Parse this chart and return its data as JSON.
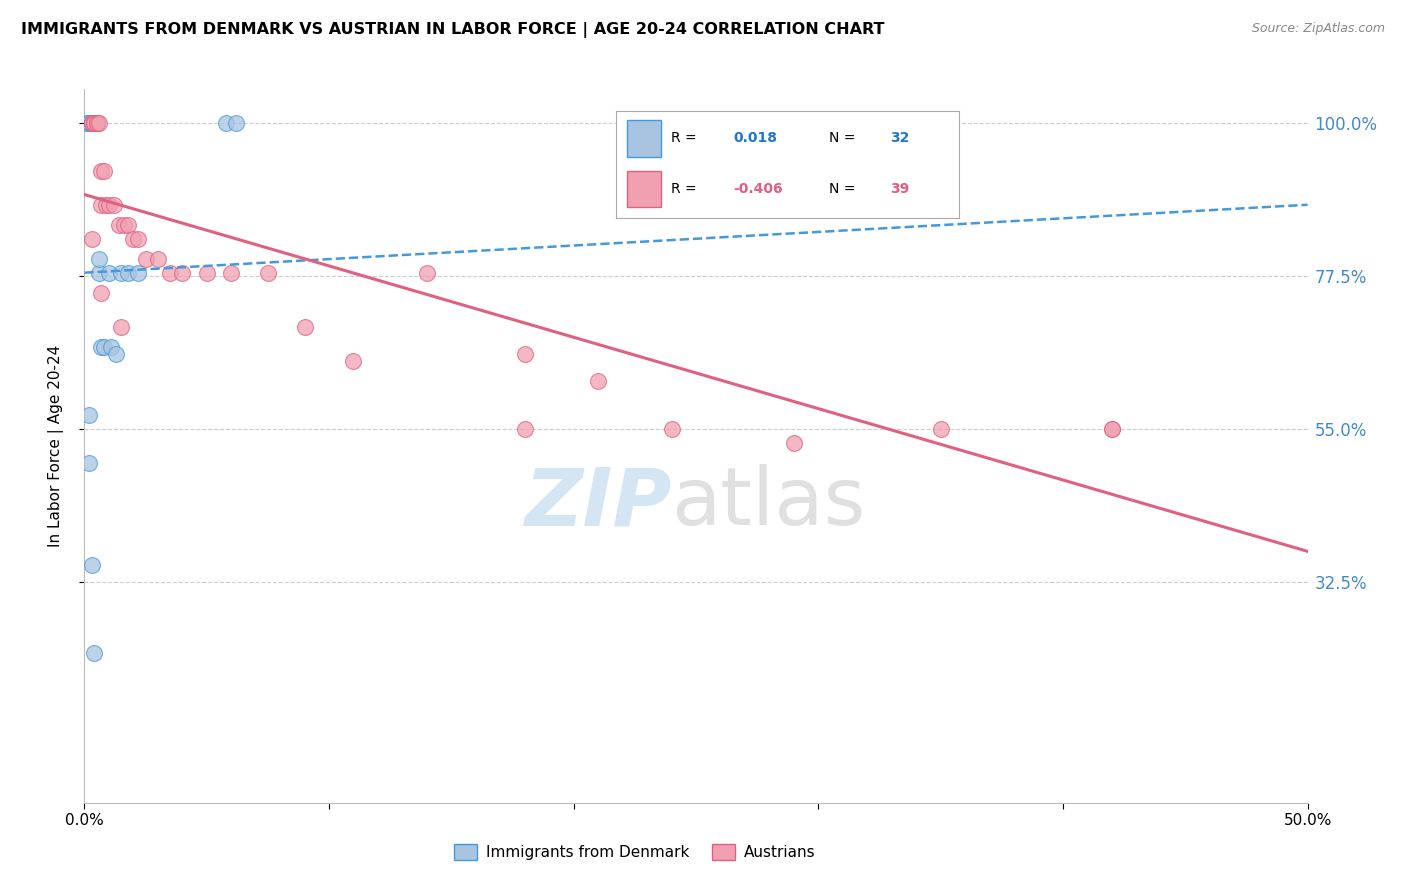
{
  "title": "IMMIGRANTS FROM DENMARK VS AUSTRIAN IN LABOR FORCE | AGE 20-24 CORRELATION CHART",
  "source": "Source: ZipAtlas.com",
  "ylabel": "In Labor Force | Age 20-24",
  "xlim": [
    0.0,
    0.5
  ],
  "ylim": [
    0.0,
    1.05
  ],
  "yticks": [
    0.325,
    0.55,
    0.775,
    1.0
  ],
  "ytick_labels": [
    "32.5%",
    "55.0%",
    "77.5%",
    "100.0%"
  ],
  "xticks": [
    0.0,
    0.1,
    0.2,
    0.3,
    0.4,
    0.5
  ],
  "xtick_labels": [
    "0.0%",
    "",
    "",
    "",
    "",
    "50.0%"
  ],
  "denmark_color": "#a8c4e0",
  "austrians_color": "#f0a0b0",
  "trend_denmark_color": "#4499dd",
  "trend_austrians_color": "#e06080",
  "denmark_trend_x": [
    0.0,
    0.5
  ],
  "denmark_trend_y": [
    0.78,
    0.88
  ],
  "austrians_trend_x": [
    0.0,
    0.5
  ],
  "austrians_trend_y": [
    0.895,
    0.37
  ],
  "denmark_points_x": [
    0.001,
    0.002,
    0.002,
    0.003,
    0.003,
    0.003,
    0.003,
    0.004,
    0.004,
    0.004,
    0.004,
    0.004,
    0.004,
    0.005,
    0.005,
    0.005,
    0.006,
    0.006,
    0.007,
    0.008,
    0.01,
    0.011,
    0.013,
    0.015,
    0.018,
    0.022,
    0.058,
    0.062,
    0.002,
    0.002,
    0.003,
    0.004
  ],
  "denmark_points_y": [
    1.0,
    1.0,
    1.0,
    1.0,
    1.0,
    1.0,
    1.0,
    1.0,
    1.0,
    1.0,
    1.0,
    1.0,
    1.0,
    1.0,
    1.0,
    1.0,
    0.78,
    0.8,
    0.67,
    0.67,
    0.78,
    0.67,
    0.66,
    0.78,
    0.78,
    0.78,
    1.0,
    1.0,
    0.57,
    0.5,
    0.35,
    0.22
  ],
  "austrians_points_x": [
    0.003,
    0.003,
    0.004,
    0.004,
    0.005,
    0.005,
    0.006,
    0.007,
    0.007,
    0.008,
    0.009,
    0.01,
    0.012,
    0.014,
    0.016,
    0.018,
    0.02,
    0.022,
    0.025,
    0.03,
    0.035,
    0.04,
    0.05,
    0.06,
    0.075,
    0.09,
    0.11,
    0.14,
    0.18,
    0.21,
    0.24,
    0.29,
    0.35,
    0.42,
    0.003,
    0.007,
    0.015,
    0.18,
    0.42
  ],
  "austrians_points_y": [
    1.0,
    1.0,
    1.0,
    1.0,
    1.0,
    1.0,
    1.0,
    0.93,
    0.88,
    0.93,
    0.88,
    0.88,
    0.88,
    0.85,
    0.85,
    0.85,
    0.83,
    0.83,
    0.8,
    0.8,
    0.78,
    0.78,
    0.78,
    0.78,
    0.78,
    0.7,
    0.65,
    0.78,
    0.66,
    0.62,
    0.55,
    0.53,
    0.55,
    0.55,
    0.83,
    0.75,
    0.7,
    0.55,
    0.55
  ]
}
